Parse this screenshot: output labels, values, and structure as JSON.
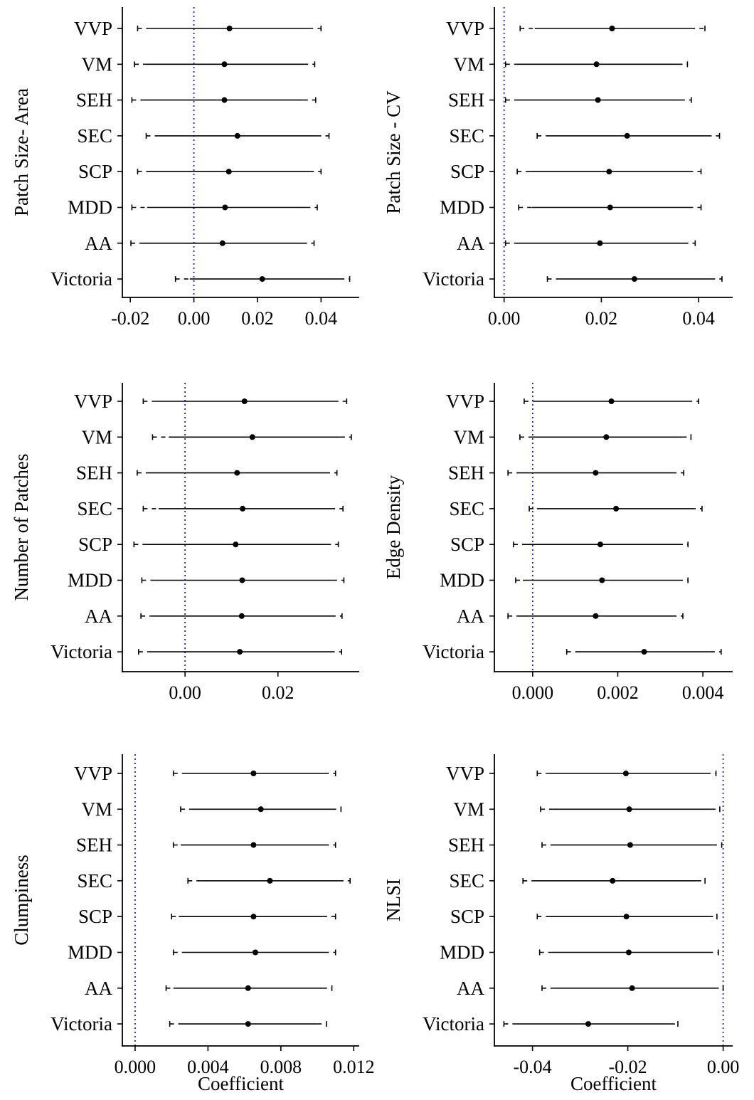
{
  "chart_data": [
    {
      "type": "errorbar",
      "ylabel": "Patch Size- Area",
      "xlabel": "",
      "categories": [
        "VVP",
        "VM",
        "SEH",
        "SEC",
        "SCP",
        "MDD",
        "AA",
        "Victoria"
      ],
      "xlim": [
        -0.0225,
        0.052
      ],
      "xticks": [
        -0.02,
        0.0,
        0.02,
        0.04
      ],
      "xtick_labels": [
        "-0.02",
        "0.00",
        "0.02",
        "0.04"
      ],
      "reference_line": 0,
      "estimates": [
        0.0112,
        0.0096,
        0.0096,
        0.0137,
        0.011,
        0.0098,
        0.009,
        0.0215
      ],
      "ci_inner": [
        [
          -0.014,
          0.0362
        ],
        [
          -0.0157,
          0.0346
        ],
        [
          -0.0157,
          0.0345
        ],
        [
          -0.0113,
          0.0387
        ],
        [
          -0.014,
          0.0364
        ],
        [
          -0.0147,
          0.0353
        ],
        [
          -0.016,
          0.0342
        ],
        [
          -0.0013,
          0.046
        ]
      ],
      "ci_outer": [
        [
          -0.0177,
          0.04
        ],
        [
          -0.0187,
          0.038
        ],
        [
          -0.0195,
          0.0383
        ],
        [
          -0.015,
          0.0425
        ],
        [
          -0.0177,
          0.04
        ],
        [
          -0.0195,
          0.0388
        ],
        [
          -0.0198,
          0.0378
        ],
        [
          -0.0058,
          0.049
        ]
      ]
    },
    {
      "type": "errorbar",
      "ylabel": "Patch Size - CV",
      "xlabel": "",
      "categories": [
        "VVP",
        "VM",
        "SEH",
        "SEC",
        "SCP",
        "MDD",
        "AA",
        "Victoria"
      ],
      "xlim": [
        -0.002,
        0.047
      ],
      "xticks": [
        0.0,
        0.02,
        0.04
      ],
      "xtick_labels": [
        "0.00",
        "0.02",
        "0.04"
      ],
      "reference_line": 0,
      "estimates": [
        0.0222,
        0.019,
        0.0193,
        0.0253,
        0.0216,
        0.0218,
        0.0197,
        0.0268
      ],
      "ci_inner": [
        [
          0.0063,
          0.0384
        ],
        [
          0.0025,
          0.0358
        ],
        [
          0.0025,
          0.0363
        ],
        [
          0.0089,
          0.0418
        ],
        [
          0.0052,
          0.038
        ],
        [
          0.0057,
          0.038
        ],
        [
          0.0023,
          0.037
        ],
        [
          0.0112,
          0.0425
        ]
      ],
      "ci_outer": [
        [
          0.0033,
          0.0413
        ],
        [
          0.0003,
          0.0377
        ],
        [
          0.0003,
          0.0385
        ],
        [
          0.0068,
          0.0443
        ],
        [
          0.0027,
          0.0405
        ],
        [
          0.003,
          0.0405
        ],
        [
          0.0003,
          0.0393
        ],
        [
          0.0089,
          0.0448
        ]
      ]
    },
    {
      "type": "errorbar",
      "ylabel": "Number of Patches",
      "xlabel": "",
      "categories": [
        "VVP",
        "VM",
        "SEH",
        "SEC",
        "SCP",
        "MDD",
        "AA",
        "Victoria"
      ],
      "xlim": [
        -0.0135,
        0.0375
      ],
      "xticks": [
        0.0,
        0.02
      ],
      "xtick_labels": [
        "0.00",
        "0.02"
      ],
      "reference_line": 0,
      "estimates": [
        0.0128,
        0.0145,
        0.0112,
        0.0124,
        0.0109,
        0.0123,
        0.0122,
        0.0118
      ],
      "ci_inner": [
        [
          -0.0068,
          0.0321
        ],
        [
          -0.0035,
          0.0335
        ],
        [
          -0.008,
          0.0303
        ],
        [
          -0.0057,
          0.0314
        ],
        [
          -0.0083,
          0.0305
        ],
        [
          -0.0072,
          0.0318
        ],
        [
          -0.0075,
          0.0315
        ],
        [
          -0.0078,
          0.0313
        ]
      ],
      "ci_outer": [
        [
          -0.009,
          0.0348
        ],
        [
          -0.007,
          0.0358
        ],
        [
          -0.0103,
          0.0327
        ],
        [
          -0.009,
          0.034
        ],
        [
          -0.011,
          0.033
        ],
        [
          -0.0093,
          0.0342
        ],
        [
          -0.0095,
          0.0338
        ],
        [
          -0.01,
          0.0337
        ]
      ]
    },
    {
      "type": "errorbar",
      "ylabel": "Edge Density",
      "xlabel": "",
      "categories": [
        "VVP",
        "VM",
        "SEH",
        "SEC",
        "SCP",
        "MDD",
        "AA",
        "Victoria"
      ],
      "xlim": [
        -0.0009,
        0.0047
      ],
      "xticks": [
        0.0,
        0.002,
        0.004
      ],
      "xtick_labels": [
        "0.000",
        "0.002",
        "0.004"
      ],
      "reference_line": 0,
      "estimates": [
        0.00185,
        0.00173,
        0.00148,
        0.00196,
        0.00159,
        0.00163,
        0.00148,
        0.00262
      ],
      "ci_inner": [
        [
          0.0,
          0.00365
        ],
        [
          -5e-05,
          0.00352
        ],
        [
          -0.00038,
          0.00328
        ],
        [
          0.0001,
          0.00373
        ],
        [
          -0.00025,
          0.00343
        ],
        [
          -0.00023,
          0.00343
        ],
        [
          -0.00038,
          0.00328
        ],
        [
          0.00105,
          0.00418
        ]
      ],
      "ci_outer": [
        [
          -0.0002,
          0.0039
        ],
        [
          -0.0003,
          0.00372
        ],
        [
          -0.00058,
          0.00355
        ],
        [
          -8e-05,
          0.00398
        ],
        [
          -0.00045,
          0.00365
        ],
        [
          -0.0004,
          0.00365
        ],
        [
          -0.00058,
          0.00353
        ],
        [
          0.0008,
          0.00443
        ]
      ]
    },
    {
      "type": "errorbar",
      "ylabel": "Clumpiness",
      "xlabel": "Coefficient",
      "categories": [
        "VVP",
        "VM",
        "SEH",
        "SEC",
        "SCP",
        "MDD",
        "AA",
        "Victoria"
      ],
      "xlim": [
        -0.0007,
        0.0123
      ],
      "xticks": [
        0.0,
        0.004,
        0.008,
        0.012
      ],
      "xtick_labels": [
        "0.000",
        "0.004",
        "0.008",
        "0.012"
      ],
      "reference_line": 0,
      "estimates": [
        0.0065,
        0.0069,
        0.0065,
        0.0074,
        0.0065,
        0.0066,
        0.0062,
        0.0062
      ],
      "ci_inner": [
        [
          0.0026,
          0.0104
        ],
        [
          0.0031,
          0.0108
        ],
        [
          0.0025,
          0.0104
        ],
        [
          0.0036,
          0.0112
        ],
        [
          0.0024,
          0.0103
        ],
        [
          0.0026,
          0.0104
        ],
        [
          0.0021,
          0.0103
        ],
        [
          0.0025,
          0.01
        ]
      ],
      "ci_outer": [
        [
          0.0021,
          0.011
        ],
        [
          0.0025,
          0.0113
        ],
        [
          0.0021,
          0.011
        ],
        [
          0.0029,
          0.0118
        ],
        [
          0.002,
          0.011
        ],
        [
          0.0021,
          0.011
        ],
        [
          0.0017,
          0.0108
        ],
        [
          0.0019,
          0.0105
        ]
      ]
    },
    {
      "type": "errorbar",
      "ylabel": "NLSI",
      "xlabel": "Coefficient",
      "categories": [
        "VVP",
        "VM",
        "SEH",
        "SEC",
        "SCP",
        "MDD",
        "AA",
        "Victoria"
      ],
      "xlim": [
        -0.048,
        0.002
      ],
      "xticks": [
        -0.04,
        -0.02,
        0.0
      ],
      "xtick_labels": [
        "-0.04",
        "-0.02",
        "0.00"
      ],
      "reference_line": 0,
      "estimates": [
        -0.0204,
        -0.0197,
        -0.0195,
        -0.0232,
        -0.0203,
        -0.0198,
        -0.0191,
        -0.0283
      ],
      "ci_inner": [
        [
          -0.0367,
          -0.0035
        ],
        [
          -0.0359,
          -0.0025
        ],
        [
          -0.0354,
          -0.0022
        ],
        [
          -0.0398,
          -0.0055
        ],
        [
          -0.0366,
          -0.003
        ],
        [
          -0.036,
          -0.003
        ],
        [
          -0.0353,
          -0.0018
        ],
        [
          -0.0435,
          -0.011
        ]
      ],
      "ci_outer": [
        [
          -0.039,
          -0.0015
        ],
        [
          -0.0383,
          -0.0007
        ],
        [
          -0.038,
          -0.0003
        ],
        [
          -0.042,
          -0.0038
        ],
        [
          -0.039,
          -0.0013
        ],
        [
          -0.0385,
          -0.001
        ],
        [
          -0.038,
          0.0
        ],
        [
          -0.046,
          -0.0095
        ]
      ]
    }
  ]
}
